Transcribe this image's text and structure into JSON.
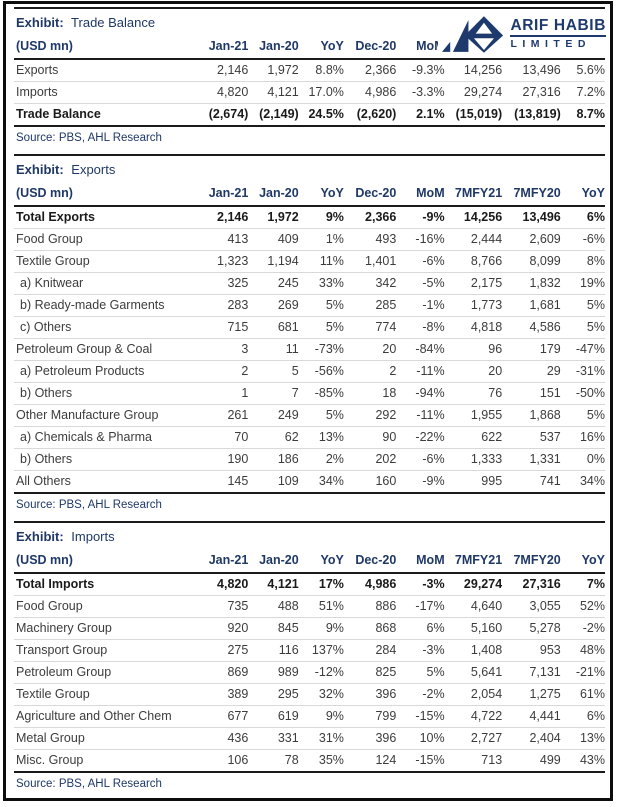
{
  "brand": {
    "name": "ARIF HABIB",
    "sub": "LIMITED",
    "navy": "#1f3866",
    "logo_navy": "#1e3a6d",
    "logo_icon": "arif-habib-diamond-mark-icon"
  },
  "colors": {
    "header_text": "#1f3866",
    "body_text": "#3c3c3c",
    "rule_dark": "#1a1a1a",
    "rule_light": "#d9d9d9",
    "frame_border": "#0d0d0d"
  },
  "table_columns": [
    "(USD mn)",
    "Jan-21",
    "Jan-20",
    "YoY",
    "Dec-20",
    "MoM",
    "7MFY21",
    "7MFY20",
    "YoY"
  ],
  "sections": [
    {
      "exhibit_label": "Exhibit:",
      "exhibit_title": "Trade Balance",
      "source": "Source: PBS, AHL Research",
      "rows": [
        {
          "label": "Exports",
          "bold": false,
          "indent": false,
          "values": [
            "2,146",
            "1,972",
            "8.8%",
            "2,366",
            "-9.3%",
            "14,256",
            "13,496",
            "5.6%"
          ]
        },
        {
          "label": "Imports",
          "bold": false,
          "indent": false,
          "values": [
            "4,820",
            "4,121",
            "17.0%",
            "4,986",
            "-3.3%",
            "29,274",
            "27,316",
            "7.2%"
          ]
        },
        {
          "label": "Trade Balance",
          "bold": true,
          "indent": false,
          "values": [
            "(2,674)",
            "(2,149)",
            "24.5%",
            "(2,620)",
            "2.1%",
            "(15,019)",
            "(13,819)",
            "8.7%"
          ]
        }
      ]
    },
    {
      "exhibit_label": "Exhibit:",
      "exhibit_title": "Exports",
      "source": "Source: PBS, AHL Research",
      "rows": [
        {
          "label": "Total Exports",
          "bold": true,
          "indent": false,
          "values": [
            "2,146",
            "1,972",
            "9%",
            "2,366",
            "-9%",
            "14,256",
            "13,496",
            "6%"
          ]
        },
        {
          "label": "Food Group",
          "bold": false,
          "indent": false,
          "values": [
            "413",
            "409",
            "1%",
            "493",
            "-16%",
            "2,444",
            "2,609",
            "-6%"
          ]
        },
        {
          "label": "Textile Group",
          "bold": false,
          "indent": false,
          "values": [
            "1,323",
            "1,194",
            "11%",
            "1,401",
            "-6%",
            "8,766",
            "8,099",
            "8%"
          ]
        },
        {
          "label": "a) Knitwear",
          "bold": false,
          "indent": true,
          "values": [
            "325",
            "245",
            "33%",
            "342",
            "-5%",
            "2,175",
            "1,832",
            "19%"
          ]
        },
        {
          "label": "b) Ready-made Garments",
          "bold": false,
          "indent": true,
          "values": [
            "283",
            "269",
            "5%",
            "285",
            "-1%",
            "1,773",
            "1,681",
            "5%"
          ]
        },
        {
          "label": "c) Others",
          "bold": false,
          "indent": true,
          "values": [
            "715",
            "681",
            "5%",
            "774",
            "-8%",
            "4,818",
            "4,586",
            "5%"
          ]
        },
        {
          "label": "Petroleum Group & Coal",
          "bold": false,
          "indent": false,
          "values": [
            "3",
            "11",
            "-73%",
            "20",
            "-84%",
            "96",
            "179",
            "-47%"
          ]
        },
        {
          "label": "a) Petroleum Products",
          "bold": false,
          "indent": true,
          "values": [
            "2",
            "5",
            "-56%",
            "2",
            "-11%",
            "20",
            "29",
            "-31%"
          ]
        },
        {
          "label": "b) Others",
          "bold": false,
          "indent": true,
          "values": [
            "1",
            "7",
            "-85%",
            "18",
            "-94%",
            "76",
            "151",
            "-50%"
          ]
        },
        {
          "label": "Other Manufacture Group",
          "bold": false,
          "indent": false,
          "values": [
            "261",
            "249",
            "5%",
            "292",
            "-11%",
            "1,955",
            "1,868",
            "5%"
          ]
        },
        {
          "label": "a) Chemicals & Pharma",
          "bold": false,
          "indent": true,
          "values": [
            "70",
            "62",
            "13%",
            "90",
            "-22%",
            "622",
            "537",
            "16%"
          ]
        },
        {
          "label": "b) Others",
          "bold": false,
          "indent": true,
          "values": [
            "190",
            "186",
            "2%",
            "202",
            "-6%",
            "1,333",
            "1,331",
            "0%"
          ]
        },
        {
          "label": "All Others",
          "bold": false,
          "indent": false,
          "values": [
            "145",
            "109",
            "34%",
            "160",
            "-9%",
            "995",
            "741",
            "34%"
          ]
        }
      ]
    },
    {
      "exhibit_label": "Exhibit:",
      "exhibit_title": "Imports",
      "source": "Source: PBS, AHL Research",
      "rows": [
        {
          "label": "Total Imports",
          "bold": true,
          "indent": false,
          "values": [
            "4,820",
            "4,121",
            "17%",
            "4,986",
            "-3%",
            "29,274",
            "27,316",
            "7%"
          ]
        },
        {
          "label": "Food Group",
          "bold": false,
          "indent": false,
          "values": [
            "735",
            "488",
            "51%",
            "886",
            "-17%",
            "4,640",
            "3,055",
            "52%"
          ]
        },
        {
          "label": "Machinery Group",
          "bold": false,
          "indent": false,
          "values": [
            "920",
            "845",
            "9%",
            "868",
            "6%",
            "5,160",
            "5,278",
            "-2%"
          ]
        },
        {
          "label": "Transport Group",
          "bold": false,
          "indent": false,
          "values": [
            "275",
            "116",
            "137%",
            "284",
            "-3%",
            "1,408",
            "953",
            "48%"
          ]
        },
        {
          "label": "Petroleum Group",
          "bold": false,
          "indent": false,
          "values": [
            "869",
            "989",
            "-12%",
            "825",
            "5%",
            "5,641",
            "7,131",
            "-21%"
          ]
        },
        {
          "label": "Textile Group",
          "bold": false,
          "indent": false,
          "values": [
            "389",
            "295",
            "32%",
            "396",
            "-2%",
            "2,054",
            "1,275",
            "61%"
          ]
        },
        {
          "label": "Agriculture and Other Chem",
          "bold": false,
          "indent": false,
          "values": [
            "677",
            "619",
            "9%",
            "799",
            "-15%",
            "4,722",
            "4,441",
            "6%"
          ]
        },
        {
          "label": "Metal Group",
          "bold": false,
          "indent": false,
          "values": [
            "436",
            "331",
            "31%",
            "396",
            "10%",
            "2,727",
            "2,404",
            "13%"
          ]
        },
        {
          "label": "Misc. Group",
          "bold": false,
          "indent": false,
          "values": [
            "106",
            "78",
            "35%",
            "124",
            "-15%",
            "713",
            "499",
            "43%"
          ]
        }
      ]
    }
  ]
}
